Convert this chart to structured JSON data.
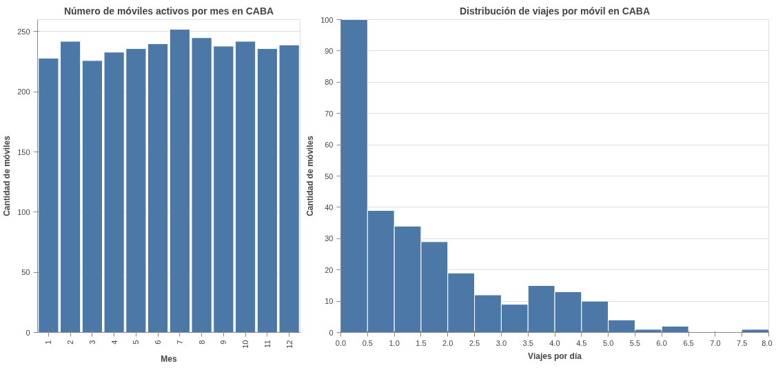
{
  "chart_data": [
    {
      "type": "bar",
      "title": "Número de móviles activos por mes en CABA",
      "xlabel": "Mes",
      "ylabel": "Cantidad de móviles",
      "categories": [
        "1",
        "2",
        "3",
        "4",
        "5",
        "6",
        "7",
        "8",
        "9",
        "10",
        "11",
        "12"
      ],
      "values": [
        228,
        242,
        226,
        233,
        236,
        240,
        252,
        245,
        238,
        242,
        236,
        239
      ],
      "color": "#4c78a8",
      "ylim": [
        0,
        260
      ],
      "yticks": [
        0,
        50,
        100,
        150,
        200,
        250
      ],
      "grid": "y"
    },
    {
      "type": "histogram",
      "title": "Distribución de viajes por móvil en CABA",
      "xlabel": "Viajes por día",
      "ylabel": "Cantidad de móviles",
      "bins": [
        0,
        0.5,
        1,
        1.5,
        2,
        2.5,
        3,
        3.5,
        4,
        4.5,
        5,
        5.5,
        6,
        6.5,
        7,
        7.5,
        8
      ],
      "values": [
        100,
        39,
        34,
        29,
        19,
        12,
        9,
        15,
        13,
        10,
        4,
        1,
        2,
        0,
        0,
        1
      ],
      "color": "#4c78a8",
      "xlim": [
        0,
        8
      ],
      "xticks": [
        {
          "value": 0,
          "label": "0.0"
        },
        {
          "value": 0.5,
          "label": "0.5"
        },
        {
          "value": 1,
          "label": "1.0"
        },
        {
          "value": 1.5,
          "label": "1.5"
        },
        {
          "value": 2,
          "label": "2.0"
        },
        {
          "value": 2.5,
          "label": "2.5"
        },
        {
          "value": 3,
          "label": "3.0"
        },
        {
          "value": 3.5,
          "label": "3.5"
        },
        {
          "value": 4,
          "label": "4.0"
        },
        {
          "value": 4.5,
          "label": "4.5"
        },
        {
          "value": 5,
          "label": "5.0"
        },
        {
          "value": 5.5,
          "label": "5.5"
        },
        {
          "value": 6,
          "label": "6.0"
        },
        {
          "value": 6.5,
          "label": "6.5"
        },
        {
          "value": 7,
          "label": "7.0"
        },
        {
          "value": 7.5,
          "label": "7.5"
        },
        {
          "value": 8,
          "label": "8.0"
        }
      ],
      "ylim": [
        0,
        100
      ],
      "yticks": [
        0,
        10,
        20,
        30,
        40,
        50,
        60,
        70,
        80,
        90,
        100
      ],
      "grid": "y"
    }
  ]
}
